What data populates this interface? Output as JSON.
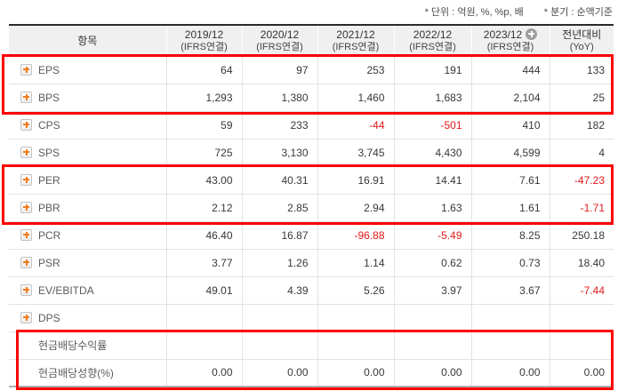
{
  "notes": {
    "unit": "* 단위 : 억원, %, %p, 배",
    "basis": "* 분기 : 순액기준"
  },
  "colors": {
    "accent_orange": "#f07c1c",
    "negative_red": "#e01919",
    "highlight_red": "#ff0000",
    "header_bg": "#f0f0f0"
  },
  "icons": {
    "row_expand": "plus-square-icon",
    "add_period": "plus-circle-icon"
  },
  "table": {
    "item_header": "항목",
    "yoy": {
      "line1": "전년대비",
      "line2": "(YoY)"
    },
    "periods": [
      {
        "label": "2019/12",
        "sub": "(IFRS연결)",
        "has_add_button": false
      },
      {
        "label": "2020/12",
        "sub": "(IFRS연결)",
        "has_add_button": false
      },
      {
        "label": "2021/12",
        "sub": "(IFRS연결)",
        "has_add_button": false
      },
      {
        "label": "2022/12",
        "sub": "(IFRS연결)",
        "has_add_button": false
      },
      {
        "label": "2023/12",
        "sub": "(IFRS연결)",
        "has_add_button": true
      }
    ],
    "rows": [
      {
        "label": "EPS",
        "has_plus": true,
        "values": [
          "64",
          "97",
          "253",
          "191",
          "444",
          "133"
        ]
      },
      {
        "label": "BPS",
        "has_plus": true,
        "values": [
          "1,293",
          "1,380",
          "1,460",
          "1,683",
          "2,104",
          "25"
        ]
      },
      {
        "label": "CPS",
        "has_plus": true,
        "values": [
          "59",
          "233",
          "-44",
          "-501",
          "410",
          "182"
        ]
      },
      {
        "label": "SPS",
        "has_plus": true,
        "values": [
          "725",
          "3,130",
          "3,745",
          "4,430",
          "4,599",
          "4"
        ]
      },
      {
        "label": "PER",
        "has_plus": true,
        "values": [
          "43.00",
          "40.31",
          "16.91",
          "14.41",
          "7.61",
          "-47.23"
        ]
      },
      {
        "label": "PBR",
        "has_plus": true,
        "values": [
          "2.12",
          "2.85",
          "2.94",
          "1.63",
          "1.61",
          "-1.71"
        ]
      },
      {
        "label": "PCR",
        "has_plus": true,
        "values": [
          "46.40",
          "16.87",
          "-96.88",
          "-5.49",
          "8.25",
          "250.18"
        ]
      },
      {
        "label": "PSR",
        "has_plus": true,
        "values": [
          "3.77",
          "1.26",
          "1.14",
          "0.62",
          "0.73",
          "18.40"
        ]
      },
      {
        "label": "EV/EBITDA",
        "has_plus": true,
        "values": [
          "49.01",
          "4.39",
          "5.26",
          "3.97",
          "3.67",
          "-7.44"
        ]
      },
      {
        "label": "DPS",
        "has_plus": true,
        "values": [
          "",
          "",
          "",
          "",
          "",
          ""
        ]
      },
      {
        "label": "현금배당수익률",
        "has_plus": false,
        "values": [
          "",
          "",
          "",
          "",
          "",
          ""
        ]
      },
      {
        "label": "현금배당성향(%)",
        "has_plus": false,
        "values": [
          "0.00",
          "0.00",
          "0.00",
          "0.00",
          "0.00",
          "0.00"
        ]
      }
    ],
    "highlights": [
      {
        "name": "eps-bps-rows"
      },
      {
        "name": "per-pbr-rows"
      },
      {
        "name": "dividend-rows"
      }
    ]
  }
}
